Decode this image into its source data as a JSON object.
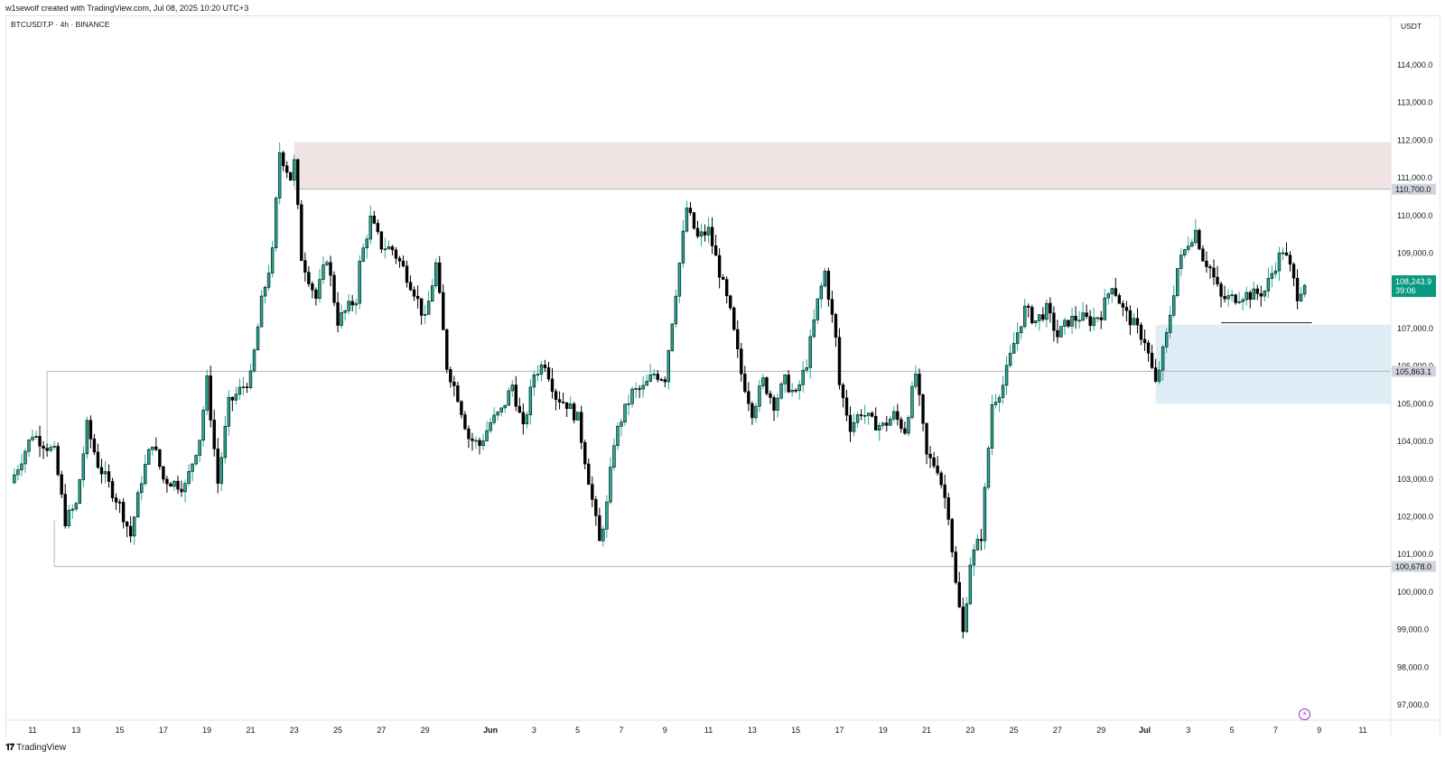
{
  "header": {
    "attribution": "w1sewolf created with TradingView.com, Jul 08, 2025 10:20 UTC+3"
  },
  "chart_header": {
    "symbol_line": "BTCUSDT.P · 4h · BINANCE",
    "currency": "USDT"
  },
  "footer": {
    "brand": "TradingView",
    "logo": "tv-logo-icon"
  },
  "colors": {
    "up": "#22ab94",
    "down": "#000000",
    "resistance_zone": "#efe4e3",
    "support_zone": "#dfedf6",
    "level_line": "#b2b5be",
    "last_price_bg": "#089981",
    "label_bg": "#d1d4dc"
  },
  "chart_data": {
    "type": "candlestick",
    "timeframe": "4h",
    "ylim": [
      96700,
      115000
    ],
    "y_ticks": [
      97000,
      98000,
      99000,
      100000,
      101000,
      102000,
      103000,
      104000,
      105000,
      106000,
      107000,
      108000,
      109000,
      110000,
      111000,
      112000,
      113000,
      114000
    ],
    "y_tick_labels": [
      "97,000.0",
      "98,000.0",
      "99,000.0",
      "100,000.0",
      "101,000.0",
      "102,000.0",
      "103,000.0",
      "104,000.0",
      "105,000.0",
      "106,000.0",
      "107,000.0",
      "108,000.0",
      "109,000.0",
      "110,000.0",
      "111,000.0",
      "112,000.0",
      "113,000.0",
      "114,000.0"
    ],
    "x_range": [
      "2025-05-10",
      "2025-07-12"
    ],
    "x_ticks": [
      {
        "date": "2025-05-11",
        "label": "11"
      },
      {
        "date": "2025-05-13",
        "label": "13"
      },
      {
        "date": "2025-05-15",
        "label": "15"
      },
      {
        "date": "2025-05-17",
        "label": "17"
      },
      {
        "date": "2025-05-19",
        "label": "19"
      },
      {
        "date": "2025-05-21",
        "label": "21"
      },
      {
        "date": "2025-05-23",
        "label": "23"
      },
      {
        "date": "2025-05-25",
        "label": "25"
      },
      {
        "date": "2025-05-27",
        "label": "27"
      },
      {
        "date": "2025-05-29",
        "label": "29"
      },
      {
        "date": "2025-06-01",
        "label": "Jun",
        "bold": true
      },
      {
        "date": "2025-06-03",
        "label": "3"
      },
      {
        "date": "2025-06-05",
        "label": "5"
      },
      {
        "date": "2025-06-07",
        "label": "7"
      },
      {
        "date": "2025-06-09",
        "label": "9"
      },
      {
        "date": "2025-06-11",
        "label": "11"
      },
      {
        "date": "2025-06-13",
        "label": "13"
      },
      {
        "date": "2025-06-15",
        "label": "15"
      },
      {
        "date": "2025-06-17",
        "label": "17"
      },
      {
        "date": "2025-06-19",
        "label": "19"
      },
      {
        "date": "2025-06-21",
        "label": "21"
      },
      {
        "date": "2025-06-23",
        "label": "23"
      },
      {
        "date": "2025-06-25",
        "label": "25"
      },
      {
        "date": "2025-06-27",
        "label": "27"
      },
      {
        "date": "2025-06-29",
        "label": "29"
      },
      {
        "date": "2025-07-01",
        "label": "Jul",
        "bold": true
      },
      {
        "date": "2025-07-03",
        "label": "3"
      },
      {
        "date": "2025-07-05",
        "label": "5"
      },
      {
        "date": "2025-07-07",
        "label": "7"
      },
      {
        "date": "2025-07-09",
        "label": "9"
      },
      {
        "date": "2025-07-11",
        "label": "11"
      }
    ],
    "price_path": [
      {
        "date": "2025-05-10",
        "close": 102900
      },
      {
        "date": "2025-05-11",
        "close": 104200
      },
      {
        "date": "2025-05-12",
        "close": 103700
      },
      {
        "date": "2025-05-12T12:00",
        "close": 101900
      },
      {
        "date": "2025-05-13",
        "close": 102300
      },
      {
        "date": "2025-05-13T12:00",
        "close": 104400
      },
      {
        "date": "2025-05-14",
        "close": 103400
      },
      {
        "date": "2025-05-15",
        "close": 102300
      },
      {
        "date": "2025-05-15T12:00",
        "close": 101500
      },
      {
        "date": "2025-05-16",
        "close": 103000
      },
      {
        "date": "2025-05-16T12:00",
        "close": 104000
      },
      {
        "date": "2025-05-17",
        "close": 103000
      },
      {
        "date": "2025-05-18",
        "close": 102800
      },
      {
        "date": "2025-05-18T16:00",
        "close": 104100
      },
      {
        "date": "2025-05-19",
        "close": 105600
      },
      {
        "date": "2025-05-19T12:00",
        "close": 102900
      },
      {
        "date": "2025-05-20",
        "close": 105000
      },
      {
        "date": "2025-05-21",
        "close": 105700
      },
      {
        "date": "2025-05-21T12:00",
        "close": 107700
      },
      {
        "date": "2025-05-22",
        "close": 109000
      },
      {
        "date": "2025-05-22T08:00",
        "close": 111700
      },
      {
        "date": "2025-05-22T20:00",
        "close": 111000
      },
      {
        "date": "2025-05-23",
        "close": 111400
      },
      {
        "date": "2025-05-23T08:00",
        "close": 108900
      },
      {
        "date": "2025-05-24",
        "close": 107800
      },
      {
        "date": "2025-05-24T12:00",
        "close": 108900
      },
      {
        "date": "2025-05-25",
        "close": 107200
      },
      {
        "date": "2025-05-25T20:00",
        "close": 107800
      },
      {
        "date": "2025-05-26",
        "close": 108700
      },
      {
        "date": "2025-05-26T12:00",
        "close": 109900
      },
      {
        "date": "2025-05-27",
        "close": 109200
      },
      {
        "date": "2025-05-27T12:00",
        "close": 109100
      },
      {
        "date": "2025-05-28",
        "close": 108600
      },
      {
        "date": "2025-05-28T12:00",
        "close": 108000
      },
      {
        "date": "2025-05-29",
        "close": 107200
      },
      {
        "date": "2025-05-29T12:00",
        "close": 108700
      },
      {
        "date": "2025-05-30",
        "close": 106000
      },
      {
        "date": "2025-05-30T12:00",
        "close": 105200
      },
      {
        "date": "2025-05-31",
        "close": 104100
      },
      {
        "date": "2025-05-31T12:00",
        "close": 103900
      },
      {
        "date": "2025-06-01",
        "close": 104500
      },
      {
        "date": "2025-06-01T12:00",
        "close": 104800
      },
      {
        "date": "2025-06-02",
        "close": 105500
      },
      {
        "date": "2025-06-02T12:00",
        "close": 104300
      },
      {
        "date": "2025-06-03",
        "close": 105800
      },
      {
        "date": "2025-06-03T12:00",
        "close": 106100
      },
      {
        "date": "2025-06-04",
        "close": 105200
      },
      {
        "date": "2025-06-04T12:00",
        "close": 105000
      },
      {
        "date": "2025-06-05",
        "close": 104600
      },
      {
        "date": "2025-06-05T12:00",
        "close": 103000
      },
      {
        "date": "2025-06-06",
        "close": 101300
      },
      {
        "date": "2025-06-06T08:00",
        "close": 102300
      },
      {
        "date": "2025-06-06T16:00",
        "close": 104000
      },
      {
        "date": "2025-06-07",
        "close": 104600
      },
      {
        "date": "2025-06-07T12:00",
        "close": 105300
      },
      {
        "date": "2025-06-08",
        "close": 105400
      },
      {
        "date": "2025-06-08T12:00",
        "close": 105800
      },
      {
        "date": "2025-06-09",
        "close": 105700
      },
      {
        "date": "2025-06-09T12:00",
        "close": 108000
      },
      {
        "date": "2025-06-10",
        "close": 110200
      },
      {
        "date": "2025-06-10T12:00",
        "close": 109400
      },
      {
        "date": "2025-06-11",
        "close": 109600
      },
      {
        "date": "2025-06-11T12:00",
        "close": 108500
      },
      {
        "date": "2025-06-12",
        "close": 107400
      },
      {
        "date": "2025-06-12T12:00",
        "close": 105800
      },
      {
        "date": "2025-06-13",
        "close": 104800
      },
      {
        "date": "2025-06-13T12:00",
        "close": 105600
      },
      {
        "date": "2025-06-14",
        "close": 105000
      },
      {
        "date": "2025-06-14T12:00",
        "close": 105600
      },
      {
        "date": "2025-06-15",
        "close": 105200
      },
      {
        "date": "2025-06-15T12:00",
        "close": 106100
      },
      {
        "date": "2025-06-16",
        "close": 107700
      },
      {
        "date": "2025-06-16T08:00",
        "close": 108500
      },
      {
        "date": "2025-06-16T20:00",
        "close": 106700
      },
      {
        "date": "2025-06-17",
        "close": 105500
      },
      {
        "date": "2025-06-17T12:00",
        "close": 104400
      },
      {
        "date": "2025-06-18",
        "close": 104800
      },
      {
        "date": "2025-06-18T12:00",
        "close": 104500
      },
      {
        "date": "2025-06-19",
        "close": 104400
      },
      {
        "date": "2025-06-19T12:00",
        "close": 104700
      },
      {
        "date": "2025-06-20",
        "close": 104300
      },
      {
        "date": "2025-06-20T12:00",
        "close": 105800
      },
      {
        "date": "2025-06-21",
        "close": 103600
      },
      {
        "date": "2025-06-21T12:00",
        "close": 103300
      },
      {
        "date": "2025-06-22",
        "close": 102100
      },
      {
        "date": "2025-06-22T08:00",
        "close": 100200
      },
      {
        "date": "2025-06-22T16:00",
        "close": 98900
      },
      {
        "date": "2025-06-23",
        "close": 100800
      },
      {
        "date": "2025-06-23T12:00",
        "close": 101500
      },
      {
        "date": "2025-06-24",
        "close": 105000
      },
      {
        "date": "2025-06-24T12:00",
        "close": 105500
      },
      {
        "date": "2025-06-25",
        "close": 106600
      },
      {
        "date": "2025-06-25T12:00",
        "close": 107500
      },
      {
        "date": "2025-06-26",
        "close": 107200
      },
      {
        "date": "2025-06-26T12:00",
        "close": 107500
      },
      {
        "date": "2025-06-27",
        "close": 106800
      },
      {
        "date": "2025-06-27T12:00",
        "close": 107200
      },
      {
        "date": "2025-06-28",
        "close": 107300
      },
      {
        "date": "2025-06-28T12:00",
        "close": 107200
      },
      {
        "date": "2025-06-29",
        "close": 107400
      },
      {
        "date": "2025-06-29T12:00",
        "close": 108200
      },
      {
        "date": "2025-06-30",
        "close": 107500
      },
      {
        "date": "2025-06-30T12:00",
        "close": 107100
      },
      {
        "date": "2025-07-01",
        "close": 106700
      },
      {
        "date": "2025-07-01T12:00",
        "close": 105500
      },
      {
        "date": "2025-07-02",
        "close": 106800
      },
      {
        "date": "2025-07-02T12:00",
        "close": 108600
      },
      {
        "date": "2025-07-03",
        "close": 109300
      },
      {
        "date": "2025-07-03T08:00",
        "close": 109600
      },
      {
        "date": "2025-07-03T16:00",
        "close": 108900
      },
      {
        "date": "2025-07-04",
        "close": 108600
      },
      {
        "date": "2025-07-04T12:00",
        "close": 107800
      },
      {
        "date": "2025-07-05",
        "close": 107800
      },
      {
        "date": "2025-07-05T12:00",
        "close": 107900
      },
      {
        "date": "2025-07-06",
        "close": 107900
      },
      {
        "date": "2025-07-06T12:00",
        "close": 108000
      },
      {
        "date": "2025-07-07",
        "close": 108700
      },
      {
        "date": "2025-07-07T08:00",
        "close": 109100
      },
      {
        "date": "2025-07-07T16:00",
        "close": 108600
      },
      {
        "date": "2025-07-08",
        "close": 107900
      },
      {
        "date": "2025-07-08T08:00",
        "close": 108244
      }
    ],
    "zones": [
      {
        "name": "resistance-zone",
        "y_low": 110700,
        "y_high": 111950,
        "x_start": "2025-05-23",
        "color": "#efe4e3"
      },
      {
        "name": "demand-zone",
        "y_low": 105000,
        "y_high": 107100,
        "x_start": "2025-07-01T12:00",
        "color": "#dfedf6"
      }
    ],
    "levels": [
      {
        "name": "level-110700",
        "value": 110700,
        "label": "110,700.0",
        "x_start": "2025-05-23"
      },
      {
        "name": "level-105863",
        "value": 105863.1,
        "label": "105,863.1",
        "x_start": "2025-05-11T16:00"
      },
      {
        "name": "level-100678",
        "value": 100678.0,
        "label": "100,678.0",
        "x_start": "2025-05-12"
      },
      {
        "name": "level-local-low",
        "value": 107150,
        "x_start": "2025-07-04T12:00",
        "x_end": "2025-07-08T16:00"
      }
    ],
    "last_price": {
      "value": 108243.9,
      "label": "108,243.9",
      "countdown": "39:06"
    }
  }
}
